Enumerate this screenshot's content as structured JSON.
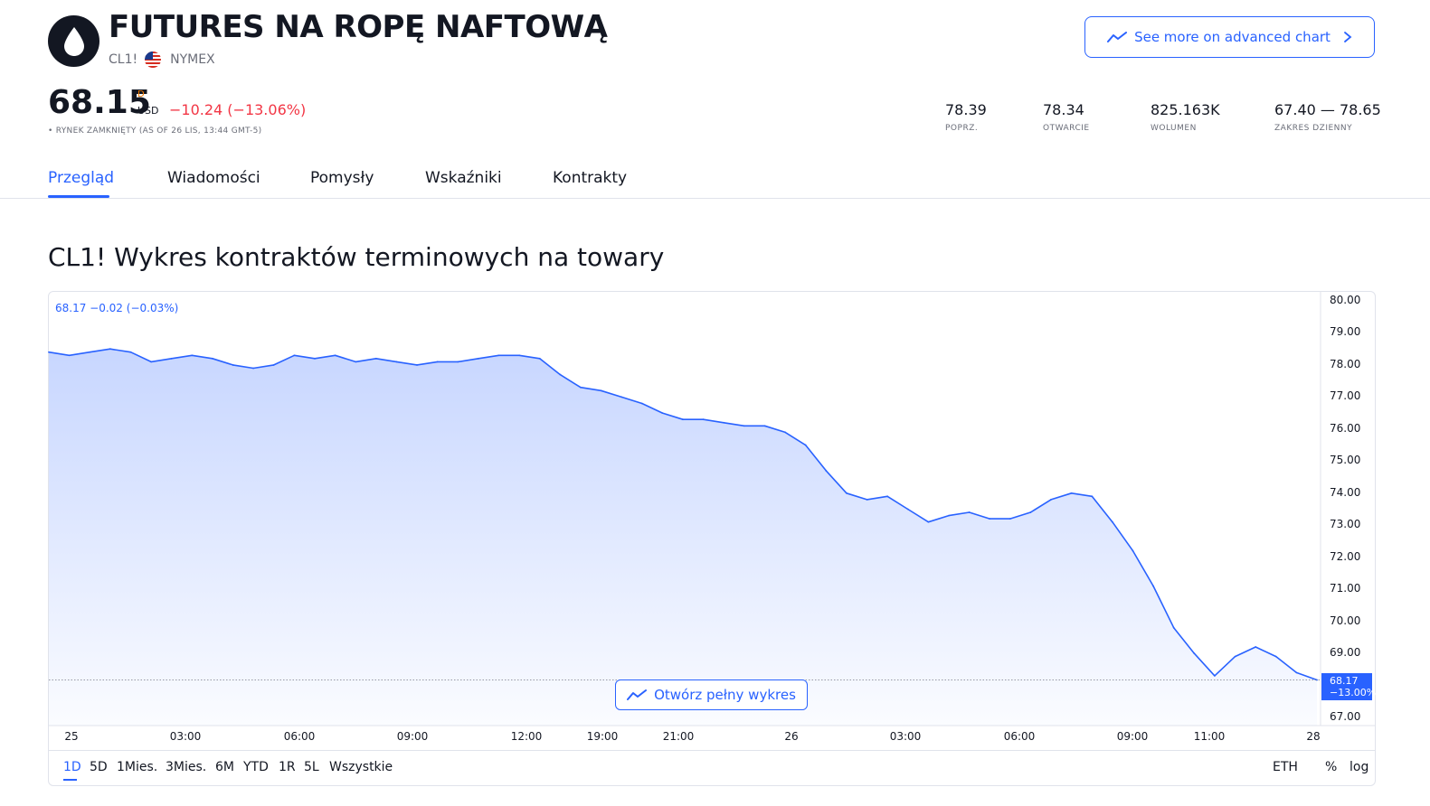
{
  "header": {
    "title": "FUTURES NA ROPĘ NAFTOWĄ",
    "symbol": "CL1!",
    "exchange": "NYMEX",
    "advanced_chart_label": "See more on advanced chart"
  },
  "quote": {
    "price": "68.15",
    "flag": "D",
    "currency": "USD",
    "change": "−10.24 (−13.06%)",
    "market_status": "• RYNEK ZAMKNIĘTY (AS OF 26 LIS, 13:44 GMT-5)"
  },
  "stats": [
    {
      "value": "78.39",
      "label": "POPRZ."
    },
    {
      "value": "78.34",
      "label": "OTWARCIE"
    },
    {
      "value": "825.163K",
      "label": "WOLUMEN"
    },
    {
      "value": "67.40 — 78.65",
      "label": "ZAKRES DZIENNY"
    }
  ],
  "tabs": [
    "Przegląd",
    "Wiadomości",
    "Pomysły",
    "Wskaźniki",
    "Kontrakty"
  ],
  "section_title": "CL1! Wykres kontraktów terminowych na towary",
  "chart": {
    "legend": "68.17 −0.02 (−0.03%)",
    "open_full_label": "Otwórz pełny wykres",
    "last_price": "68.17",
    "last_change": "−13.00%"
  },
  "ranges": [
    "1D",
    "5D",
    "1Mies.",
    "3Mies.",
    "6M",
    "YTD",
    "1R",
    "5L",
    "Wszystkie"
  ],
  "toolbar_right": {
    "session": "ETH",
    "percent": "%",
    "log": "log"
  },
  "colors": {
    "accent": "#2962ff",
    "down": "#f23645",
    "text": "#131722",
    "muted": "#6a6d78"
  },
  "chart_data": {
    "type": "area",
    "title": "",
    "xlabel": "",
    "ylabel": "",
    "ylim": [
      66.7,
      80.3
    ],
    "x_ticks": [
      "25",
      "03:00",
      "06:00",
      "09:00",
      "12:00",
      "19:00",
      "21:00",
      "26",
      "03:00",
      "06:00",
      "09:00",
      "11:00",
      "28"
    ],
    "y_ticks": [
      "80.00",
      "79.00",
      "78.00",
      "77.00",
      "76.00",
      "75.00",
      "74.00",
      "73.00",
      "72.00",
      "71.00",
      "70.00",
      "69.00",
      "67.00"
    ],
    "series": [
      {
        "values": [
          78.4,
          78.3,
          78.4,
          78.5,
          78.4,
          78.1,
          78.2,
          78.3,
          78.2,
          78.0,
          77.9,
          78.0,
          78.3,
          78.2,
          78.3,
          78.1,
          78.2,
          78.1,
          78.0,
          78.1,
          78.1,
          78.2,
          78.3,
          78.3,
          78.2,
          77.7,
          77.3,
          77.2,
          77.0,
          76.8,
          76.5,
          76.3,
          76.3,
          76.2,
          76.1,
          76.1,
          75.9,
          75.5,
          74.7,
          74.0,
          73.8,
          73.9,
          73.5,
          73.1,
          73.3,
          73.4,
          73.2,
          73.2,
          73.4,
          73.8,
          74.0,
          73.9,
          73.1,
          72.2,
          71.1,
          69.8,
          69.0,
          68.3,
          68.9,
          69.2,
          68.9,
          68.4,
          68.17
        ]
      }
    ]
  }
}
